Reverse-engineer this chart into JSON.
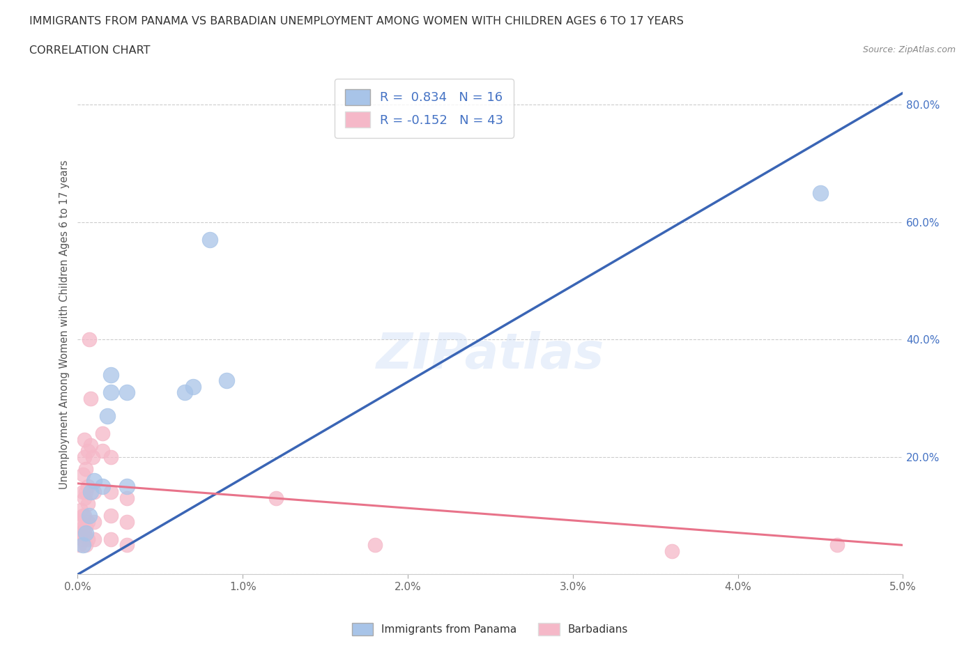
{
  "title": "IMMIGRANTS FROM PANAMA VS BARBADIAN UNEMPLOYMENT AMONG WOMEN WITH CHILDREN AGES 6 TO 17 YEARS",
  "subtitle": "CORRELATION CHART",
  "source": "Source: ZipAtlas.com",
  "ylabel": "Unemployment Among Women with Children Ages 6 to 17 years",
  "xlim": [
    0.0,
    0.05
  ],
  "ylim": [
    0.0,
    0.85
  ],
  "xticks": [
    0.0,
    0.01,
    0.02,
    0.03,
    0.04,
    0.05
  ],
  "xtick_labels": [
    "0.0%",
    "1.0%",
    "2.0%",
    "3.0%",
    "4.0%",
    "5.0%"
  ],
  "yticks": [
    0.0,
    0.2,
    0.4,
    0.6,
    0.8
  ],
  "ytick_labels": [
    "",
    "20.0%",
    "40.0%",
    "60.0%",
    "80.0%"
  ],
  "blue_color": "#a8c4e8",
  "pink_color": "#f5b8c8",
  "line_blue": "#3a65b5",
  "line_pink": "#e8738a",
  "panama_r": 0.834,
  "panama_n": 16,
  "barbadian_r": -0.152,
  "barbadian_n": 43,
  "panama_points": [
    [
      0.0003,
      0.05
    ],
    [
      0.0005,
      0.07
    ],
    [
      0.0007,
      0.1
    ],
    [
      0.0008,
      0.14
    ],
    [
      0.001,
      0.16
    ],
    [
      0.0015,
      0.15
    ],
    [
      0.0018,
      0.27
    ],
    [
      0.002,
      0.31
    ],
    [
      0.002,
      0.34
    ],
    [
      0.003,
      0.15
    ],
    [
      0.003,
      0.31
    ],
    [
      0.0065,
      0.31
    ],
    [
      0.007,
      0.32
    ],
    [
      0.008,
      0.57
    ],
    [
      0.009,
      0.33
    ],
    [
      0.045,
      0.65
    ]
  ],
  "barbadian_points": [
    [
      0.0001,
      0.05
    ],
    [
      0.0002,
      0.07
    ],
    [
      0.0002,
      0.09
    ],
    [
      0.0002,
      0.11
    ],
    [
      0.0003,
      0.06
    ],
    [
      0.0003,
      0.08
    ],
    [
      0.0003,
      0.1
    ],
    [
      0.0003,
      0.14
    ],
    [
      0.0003,
      0.17
    ],
    [
      0.0004,
      0.07
    ],
    [
      0.0004,
      0.1
    ],
    [
      0.0004,
      0.13
    ],
    [
      0.0004,
      0.2
    ],
    [
      0.0004,
      0.23
    ],
    [
      0.0005,
      0.05
    ],
    [
      0.0005,
      0.08
    ],
    [
      0.0005,
      0.14
    ],
    [
      0.0005,
      0.18
    ],
    [
      0.0006,
      0.06
    ],
    [
      0.0006,
      0.09
    ],
    [
      0.0006,
      0.12
    ],
    [
      0.0006,
      0.15
    ],
    [
      0.0006,
      0.21
    ],
    [
      0.0007,
      0.4
    ],
    [
      0.0008,
      0.3
    ],
    [
      0.0008,
      0.22
    ],
    [
      0.0009,
      0.2
    ],
    [
      0.001,
      0.06
    ],
    [
      0.001,
      0.09
    ],
    [
      0.001,
      0.14
    ],
    [
      0.0015,
      0.21
    ],
    [
      0.0015,
      0.24
    ],
    [
      0.002,
      0.06
    ],
    [
      0.002,
      0.1
    ],
    [
      0.002,
      0.14
    ],
    [
      0.002,
      0.2
    ],
    [
      0.003,
      0.05
    ],
    [
      0.003,
      0.09
    ],
    [
      0.003,
      0.13
    ],
    [
      0.012,
      0.13
    ],
    [
      0.018,
      0.05
    ],
    [
      0.036,
      0.04
    ],
    [
      0.046,
      0.05
    ]
  ]
}
